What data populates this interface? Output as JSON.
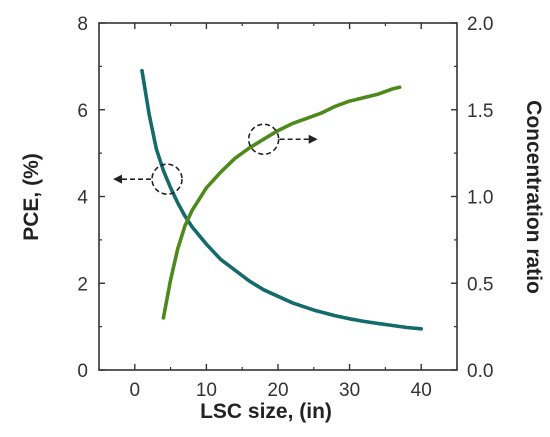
{
  "chart_data": {
    "type": "line",
    "title": "",
    "xlabel": "LSC size, (in)",
    "ylabel_left": "PCE, (%)",
    "ylabel_right": "Concentration ratio",
    "xlim": [
      -5,
      45
    ],
    "ylim_left": [
      0,
      8
    ],
    "ylim_right": [
      0,
      2
    ],
    "x_ticks": [
      0,
      10,
      20,
      30,
      40
    ],
    "y_left_ticks": [
      0,
      2,
      4,
      6,
      8
    ],
    "y_right_ticks": [
      "0.0",
      "0.5",
      "1.0",
      "1.5",
      "2.0"
    ],
    "grid": false,
    "legend": "none",
    "series": [
      {
        "axis": "left",
        "color": "#156b6b",
        "x": [
          1,
          2,
          3,
          4,
          5,
          6,
          7,
          8,
          10,
          12,
          14,
          16,
          18,
          20,
          22,
          25,
          28,
          30,
          32,
          35,
          38,
          40
        ],
        "y": [
          6.9,
          5.9,
          5.1,
          4.6,
          4.2,
          3.85,
          3.55,
          3.3,
          2.9,
          2.55,
          2.3,
          2.05,
          1.85,
          1.7,
          1.55,
          1.38,
          1.25,
          1.18,
          1.12,
          1.05,
          0.98,
          0.95
        ]
      },
      {
        "axis": "right",
        "color": "#4d8a1b",
        "x": [
          4,
          5,
          6,
          7,
          8,
          10,
          12,
          14,
          16,
          18,
          20,
          22,
          24,
          26,
          28,
          30,
          32,
          34,
          36,
          37
        ],
        "y": [
          0.3,
          0.52,
          0.7,
          0.83,
          0.92,
          1.05,
          1.14,
          1.22,
          1.28,
          1.33,
          1.38,
          1.42,
          1.45,
          1.48,
          1.52,
          1.55,
          1.57,
          1.59,
          1.62,
          1.63
        ]
      }
    ],
    "annotations": [
      {
        "x": 4.5,
        "y_left": 4.4,
        "arrow": "left"
      },
      {
        "x": 18,
        "y_right": 1.33,
        "arrow": "right"
      }
    ]
  }
}
